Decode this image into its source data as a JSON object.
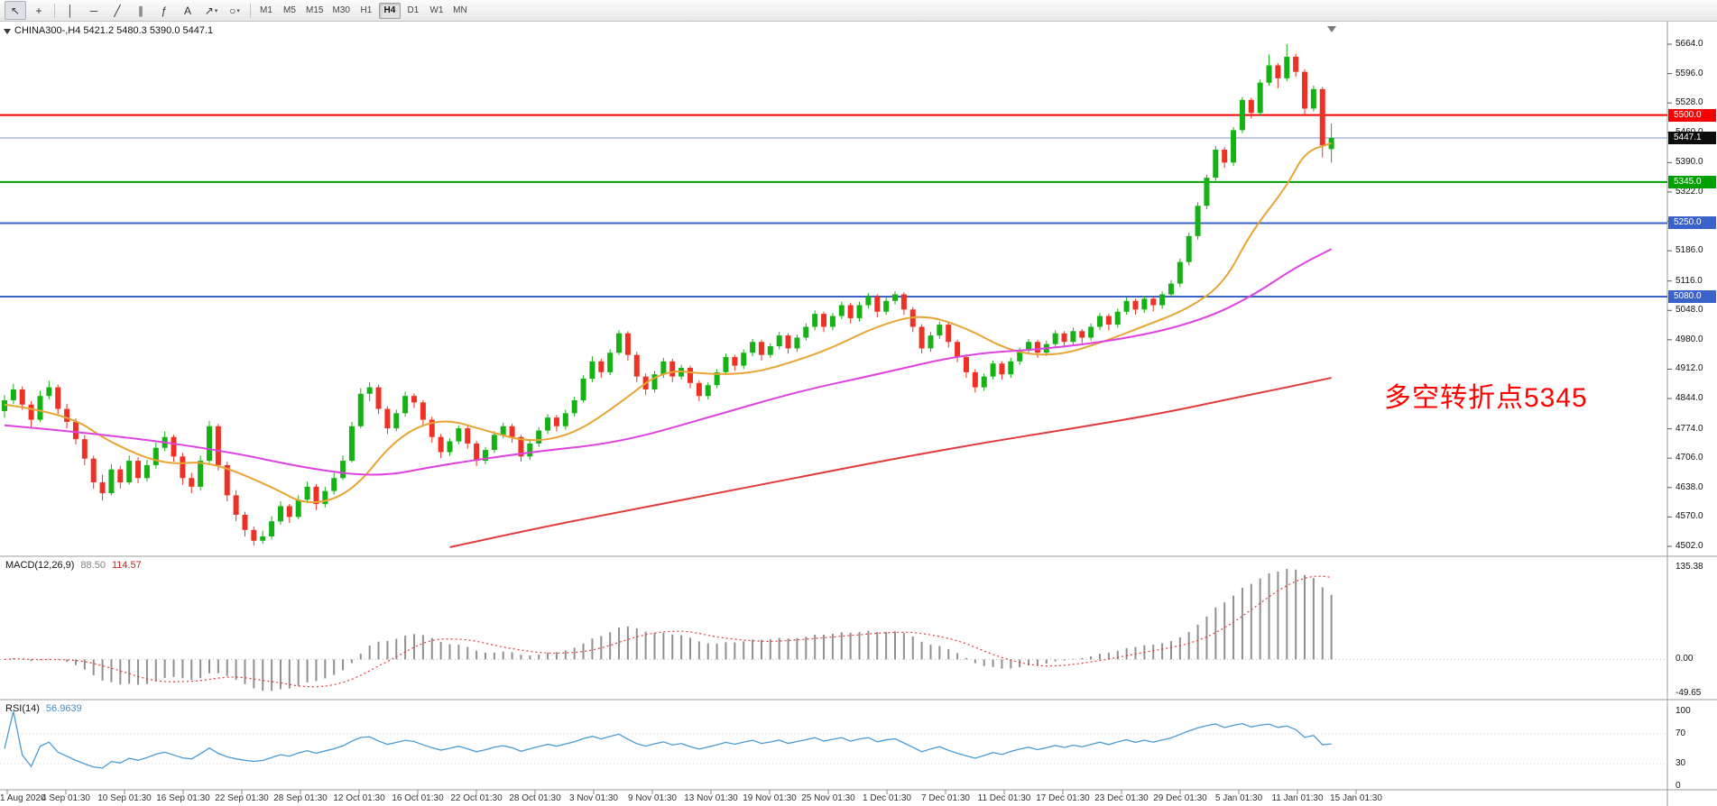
{
  "toolbar": {
    "tools": [
      {
        "name": "cursor",
        "glyph": "↖",
        "active": true
      },
      {
        "name": "crosshair",
        "glyph": "+"
      },
      {
        "name": "separator"
      },
      {
        "name": "vertical-line",
        "glyph": "│"
      },
      {
        "name": "horizontal-line",
        "glyph": "─"
      },
      {
        "name": "trendline",
        "glyph": "╱"
      },
      {
        "name": "equidistant-channel",
        "glyph": "∥"
      },
      {
        "name": "fibonacci",
        "glyph": "ƒ"
      },
      {
        "name": "text",
        "glyph": "A"
      },
      {
        "name": "arrows",
        "glyph": "↗",
        "caret": true
      },
      {
        "name": "shapes",
        "glyph": "○",
        "caret": true
      },
      {
        "name": "separator"
      }
    ],
    "timeframes": [
      "M1",
      "M5",
      "M15",
      "M30",
      "H1",
      "H4",
      "D1",
      "W1",
      "MN"
    ],
    "active_timeframe": "H4"
  },
  "chart_data": {
    "type": "candlestick",
    "symbol": "CHINA300-",
    "period": "H4",
    "quote_line": "CHINA300-,H4  5421.2 5480.3 5390.0 5447.1",
    "ohlc": {
      "open": 5421.2,
      "high": 5480.3,
      "low": 5390.0,
      "close": 5447.1
    },
    "price_axis": {
      "max": 5664.0,
      "min": 4502.0,
      "ticks": [
        5664.0,
        5596.0,
        5528.0,
        5460.0,
        5390.0,
        5322.0,
        5254.0,
        5186.0,
        5116.0,
        5048.0,
        4980.0,
        4912.0,
        4844.0,
        4774.0,
        4706.0,
        4638.0,
        4570.0,
        4502.0
      ]
    },
    "x_labels": [
      "1 Aug 2020",
      "4 Sep 01:30",
      "10 Sep 01:30",
      "16 Sep 01:30",
      "22 Sep 01:30",
      "28 Sep 01:30",
      "12 Oct 01:30",
      "16 Oct 01:30",
      "22 Oct 01:30",
      "28 Oct 01:30",
      "3 Nov 01:30",
      "9 Nov 01:30",
      "13 Nov 01:30",
      "19 Nov 01:30",
      "25 Nov 01:30",
      "1 Dec 01:30",
      "7 Dec 01:30",
      "11 Dec 01:30",
      "17 Dec 01:30",
      "23 Dec 01:30",
      "29 Dec 01:30",
      "5 Jan 01:30",
      "11 Jan 01:30",
      "15 Jan 01:30"
    ],
    "candles": [
      [
        4815,
        4852,
        4800,
        4840
      ],
      [
        4840,
        4878,
        4832,
        4865
      ],
      [
        4865,
        4872,
        4818,
        4830
      ],
      [
        4830,
        4838,
        4778,
        4795
      ],
      [
        4795,
        4862,
        4790,
        4850
      ],
      [
        4850,
        4885,
        4842,
        4870
      ],
      [
        4870,
        4876,
        4808,
        4820
      ],
      [
        4820,
        4832,
        4775,
        4790
      ],
      [
        4790,
        4798,
        4738,
        4750
      ],
      [
        4750,
        4760,
        4690,
        4705
      ],
      [
        4705,
        4712,
        4635,
        4650
      ],
      [
        4650,
        4668,
        4608,
        4625
      ],
      [
        4625,
        4692,
        4620,
        4680
      ],
      [
        4680,
        4688,
        4636,
        4650
      ],
      [
        4650,
        4712,
        4645,
        4700
      ],
      [
        4700,
        4708,
        4648,
        4660
      ],
      [
        4660,
        4702,
        4652,
        4690
      ],
      [
        4690,
        4742,
        4682,
        4730
      ],
      [
        4730,
        4768,
        4722,
        4755
      ],
      [
        4755,
        4760,
        4698,
        4710
      ],
      [
        4710,
        4718,
        4645,
        4660
      ],
      [
        4660,
        4672,
        4625,
        4640
      ],
      [
        4640,
        4712,
        4632,
        4700
      ],
      [
        4700,
        4792,
        4695,
        4780
      ],
      [
        4780,
        4785,
        4678,
        4690
      ],
      [
        4690,
        4698,
        4606,
        4620
      ],
      [
        4620,
        4632,
        4560,
        4575
      ],
      [
        4575,
        4582,
        4525,
        4540
      ],
      [
        4540,
        4548,
        4504,
        4515
      ],
      [
        4515,
        4538,
        4508,
        4525
      ],
      [
        4525,
        4572,
        4518,
        4560
      ],
      [
        4560,
        4606,
        4552,
        4595
      ],
      [
        4595,
        4600,
        4556,
        4570
      ],
      [
        4570,
        4620,
        4565,
        4610
      ],
      [
        4610,
        4652,
        4602,
        4640
      ],
      [
        4640,
        4646,
        4586,
        4600
      ],
      [
        4600,
        4640,
        4592,
        4630
      ],
      [
        4630,
        4672,
        4622,
        4660
      ],
      [
        4660,
        4712,
        4655,
        4700
      ],
      [
        4700,
        4790,
        4696,
        4780
      ],
      [
        4780,
        4868,
        4775,
        4855
      ],
      [
        4855,
        4882,
        4838,
        4870
      ],
      [
        4870,
        4876,
        4808,
        4820
      ],
      [
        4820,
        4826,
        4762,
        4775
      ],
      [
        4775,
        4818,
        4768,
        4810
      ],
      [
        4810,
        4860,
        4802,
        4850
      ],
      [
        4850,
        4856,
        4822,
        4835
      ],
      [
        4835,
        4840,
        4782,
        4795
      ],
      [
        4795,
        4802,
        4742,
        4755
      ],
      [
        4755,
        4762,
        4706,
        4720
      ],
      [
        4720,
        4752,
        4712,
        4745
      ],
      [
        4745,
        4782,
        4738,
        4775
      ],
      [
        4775,
        4780,
        4728,
        4740
      ],
      [
        4740,
        4746,
        4688,
        4700
      ],
      [
        4700,
        4732,
        4692,
        4725
      ],
      [
        4725,
        4768,
        4718,
        4760
      ],
      [
        4760,
        4788,
        4752,
        4780
      ],
      [
        4780,
        4786,
        4742,
        4755
      ],
      [
        4755,
        4760,
        4698,
        4710
      ],
      [
        4710,
        4748,
        4702,
        4740
      ],
      [
        4740,
        4778,
        4732,
        4770
      ],
      [
        4770,
        4808,
        4762,
        4800
      ],
      [
        4800,
        4806,
        4768,
        4780
      ],
      [
        4780,
        4818,
        4772,
        4810
      ],
      [
        4810,
        4848,
        4802,
        4840
      ],
      [
        4840,
        4898,
        4835,
        4890
      ],
      [
        4890,
        4942,
        4882,
        4930
      ],
      [
        4930,
        4936,
        4892,
        4905
      ],
      [
        4905,
        4958,
        4898,
        4950
      ],
      [
        4950,
        5002,
        4945,
        4995
      ],
      [
        4995,
        5000,
        4932,
        4945
      ],
      [
        4945,
        4952,
        4882,
        4895
      ],
      [
        4895,
        4902,
        4852,
        4865
      ],
      [
        4865,
        4908,
        4858,
        4900
      ],
      [
        4900,
        4938,
        4892,
        4930
      ],
      [
        4930,
        4936,
        4882,
        4895
      ],
      [
        4895,
        4922,
        4888,
        4915
      ],
      [
        4915,
        4920,
        4868,
        4880
      ],
      [
        4880,
        4886,
        4838,
        4850
      ],
      [
        4850,
        4882,
        4842,
        4875
      ],
      [
        4875,
        4912,
        4868,
        4905
      ],
      [
        4905,
        4948,
        4898,
        4940
      ],
      [
        4940,
        4945,
        4908,
        4920
      ],
      [
        4920,
        4958,
        4912,
        4950
      ],
      [
        4950,
        4982,
        4942,
        4975
      ],
      [
        4975,
        4980,
        4932,
        4945
      ],
      [
        4945,
        4972,
        4938,
        4965
      ],
      [
        4965,
        4998,
        4958,
        4990
      ],
      [
        4990,
        4995,
        4948,
        4960
      ],
      [
        4960,
        4992,
        4952,
        4985
      ],
      [
        4985,
        5018,
        4978,
        5010
      ],
      [
        5010,
        5048,
        5002,
        5040
      ],
      [
        5040,
        5045,
        4998,
        5010
      ],
      [
        5010,
        5042,
        5002,
        5035
      ],
      [
        5035,
        5068,
        5028,
        5060
      ],
      [
        5060,
        5065,
        5018,
        5030
      ],
      [
        5030,
        5068,
        5022,
        5060
      ],
      [
        5060,
        5088,
        5052,
        5080
      ],
      [
        5080,
        5085,
        5032,
        5045
      ],
      [
        5045,
        5078,
        5038,
        5070
      ],
      [
        5070,
        5092,
        5062,
        5085
      ],
      [
        5085,
        5090,
        5038,
        5050
      ],
      [
        5050,
        5056,
        4998,
        5010
      ],
      [
        5010,
        5016,
        4948,
        4960
      ],
      [
        4960,
        4998,
        4952,
        4990
      ],
      [
        4990,
        5022,
        4982,
        5015
      ],
      [
        5015,
        5020,
        4962,
        4975
      ],
      [
        4975,
        4980,
        4928,
        4940
      ],
      [
        4940,
        4946,
        4892,
        4905
      ],
      [
        4905,
        4912,
        4858,
        4870
      ],
      [
        4870,
        4902,
        4862,
        4895
      ],
      [
        4895,
        4932,
        4888,
        4925
      ],
      [
        4925,
        4930,
        4888,
        4900
      ],
      [
        4900,
        4938,
        4892,
        4930
      ],
      [
        4930,
        4962,
        4922,
        4955
      ],
      [
        4955,
        4982,
        4948,
        4975
      ],
      [
        4975,
        4980,
        4938,
        4950
      ],
      [
        4950,
        4978,
        4942,
        4970
      ],
      [
        4970,
        5002,
        4962,
        4995
      ],
      [
        4995,
        5000,
        4962,
        4975
      ],
      [
        4975,
        5008,
        4968,
        5000
      ],
      [
        5000,
        5005,
        4972,
        4985
      ],
      [
        4985,
        5018,
        4978,
        5010
      ],
      [
        5010,
        5042,
        5002,
        5035
      ],
      [
        5035,
        5040,
        5002,
        5015
      ],
      [
        5015,
        5052,
        5008,
        5045
      ],
      [
        5045,
        5078,
        5038,
        5070
      ],
      [
        5070,
        5075,
        5038,
        5050
      ],
      [
        5050,
        5082,
        5042,
        5075
      ],
      [
        5075,
        5080,
        5046,
        5060
      ],
      [
        5060,
        5092,
        5052,
        5085
      ],
      [
        5085,
        5118,
        5078,
        5110
      ],
      [
        5110,
        5168,
        5102,
        5160
      ],
      [
        5160,
        5228,
        5152,
        5220
      ],
      [
        5220,
        5298,
        5212,
        5290
      ],
      [
        5290,
        5362,
        5282,
        5355
      ],
      [
        5355,
        5428,
        5348,
        5420
      ],
      [
        5420,
        5426,
        5378,
        5390
      ],
      [
        5390,
        5472,
        5382,
        5465
      ],
      [
        5465,
        5542,
        5458,
        5535
      ],
      [
        5535,
        5540,
        5492,
        5505
      ],
      [
        5505,
        5582,
        5498,
        5575
      ],
      [
        5575,
        5640,
        5568,
        5615
      ],
      [
        5615,
        5620,
        5562,
        5585
      ],
      [
        5585,
        5664,
        5578,
        5635
      ],
      [
        5635,
        5642,
        5588,
        5600
      ],
      [
        5600,
        5606,
        5502,
        5515
      ],
      [
        5515,
        5568,
        5508,
        5560
      ],
      [
        5560,
        5565,
        5402,
        5430
      ],
      [
        5421.2,
        5480.3,
        5390.0,
        5447.1
      ]
    ],
    "overlays": [
      {
        "name": "ma-fast",
        "color": "#e8a434",
        "points": [
          [
            0,
            4830
          ],
          [
            7,
            4810
          ],
          [
            12,
            4740
          ],
          [
            18,
            4690
          ],
          [
            23,
            4700
          ],
          [
            30,
            4640
          ],
          [
            34,
            4595
          ],
          [
            39,
            4625
          ],
          [
            44,
            4755
          ],
          [
            49,
            4800
          ],
          [
            54,
            4770
          ],
          [
            59,
            4742
          ],
          [
            64,
            4762
          ],
          [
            69,
            4832
          ],
          [
            74,
            4912
          ],
          [
            79,
            4900
          ],
          [
            84,
            4902
          ],
          [
            89,
            4932
          ],
          [
            93,
            4962
          ],
          [
            98,
            5012
          ],
          [
            103,
            5040
          ],
          [
            108,
            5008
          ],
          [
            113,
            4952
          ],
          [
            118,
            4942
          ],
          [
            123,
            4972
          ],
          [
            128,
            5012
          ],
          [
            133,
            5052
          ],
          [
            137,
            5112
          ],
          [
            140,
            5230
          ],
          [
            144,
            5335
          ],
          [
            146,
            5415
          ],
          [
            149,
            5435
          ]
        ]
      },
      {
        "name": "ma-mid",
        "color": "#df43df",
        "points": [
          [
            0,
            4782
          ],
          [
            12,
            4760
          ],
          [
            25,
            4722
          ],
          [
            34,
            4682
          ],
          [
            42,
            4662
          ],
          [
            49,
            4690
          ],
          [
            59,
            4720
          ],
          [
            69,
            4742
          ],
          [
            79,
            4800
          ],
          [
            89,
            4860
          ],
          [
            98,
            4900
          ],
          [
            108,
            4948
          ],
          [
            118,
            4960
          ],
          [
            128,
            4990
          ],
          [
            135,
            5030
          ],
          [
            140,
            5080
          ],
          [
            145,
            5148
          ],
          [
            149,
            5190
          ]
        ]
      },
      {
        "name": "ma-slow",
        "color": "#e03a3a",
        "points": [
          [
            50,
            4500
          ],
          [
            60,
            4545
          ],
          [
            70,
            4585
          ],
          [
            80,
            4625
          ],
          [
            90,
            4665
          ],
          [
            100,
            4705
          ],
          [
            110,
            4742
          ],
          [
            120,
            4775
          ],
          [
            130,
            4810
          ],
          [
            138,
            4845
          ],
          [
            144,
            4870
          ],
          [
            149,
            4892
          ]
        ]
      }
    ],
    "hlines": [
      {
        "price": 5500.0,
        "label": "5500.0",
        "color": "#f60000",
        "width": 2
      },
      {
        "price": 5345.0,
        "label": "5345.0",
        "color": "#00a000",
        "width": 2
      },
      {
        "price": 5250.0,
        "label": "5250.0",
        "color": "#3a62c8",
        "width": 2
      },
      {
        "price": 5080.0,
        "label": "5080.0",
        "color": "#3a62c8",
        "width": 2
      }
    ],
    "current_price": {
      "value": 5447.1,
      "label": "5447.1",
      "line_color": "#7d96c6",
      "tag_bg": "#0d0d0d"
    },
    "annotation": {
      "text": "多空转折点5345",
      "color": "#fe0000"
    },
    "colors": {
      "up": "#15b115",
      "down": "#ee3124",
      "hist": "#909090",
      "signal": "#e23b3b",
      "rsi": "#4a9bd5"
    },
    "macd": {
      "label": "MACD(12,26,9)",
      "main_value": "88.50",
      "signal_value": "114.57",
      "scale": [
        135.38,
        0.0,
        -49.65
      ]
    },
    "rsi": {
      "label": "RSI(14)",
      "value": "56.9639",
      "scale": [
        100,
        70,
        30,
        0
      ],
      "levels": [
        70,
        30
      ]
    }
  }
}
